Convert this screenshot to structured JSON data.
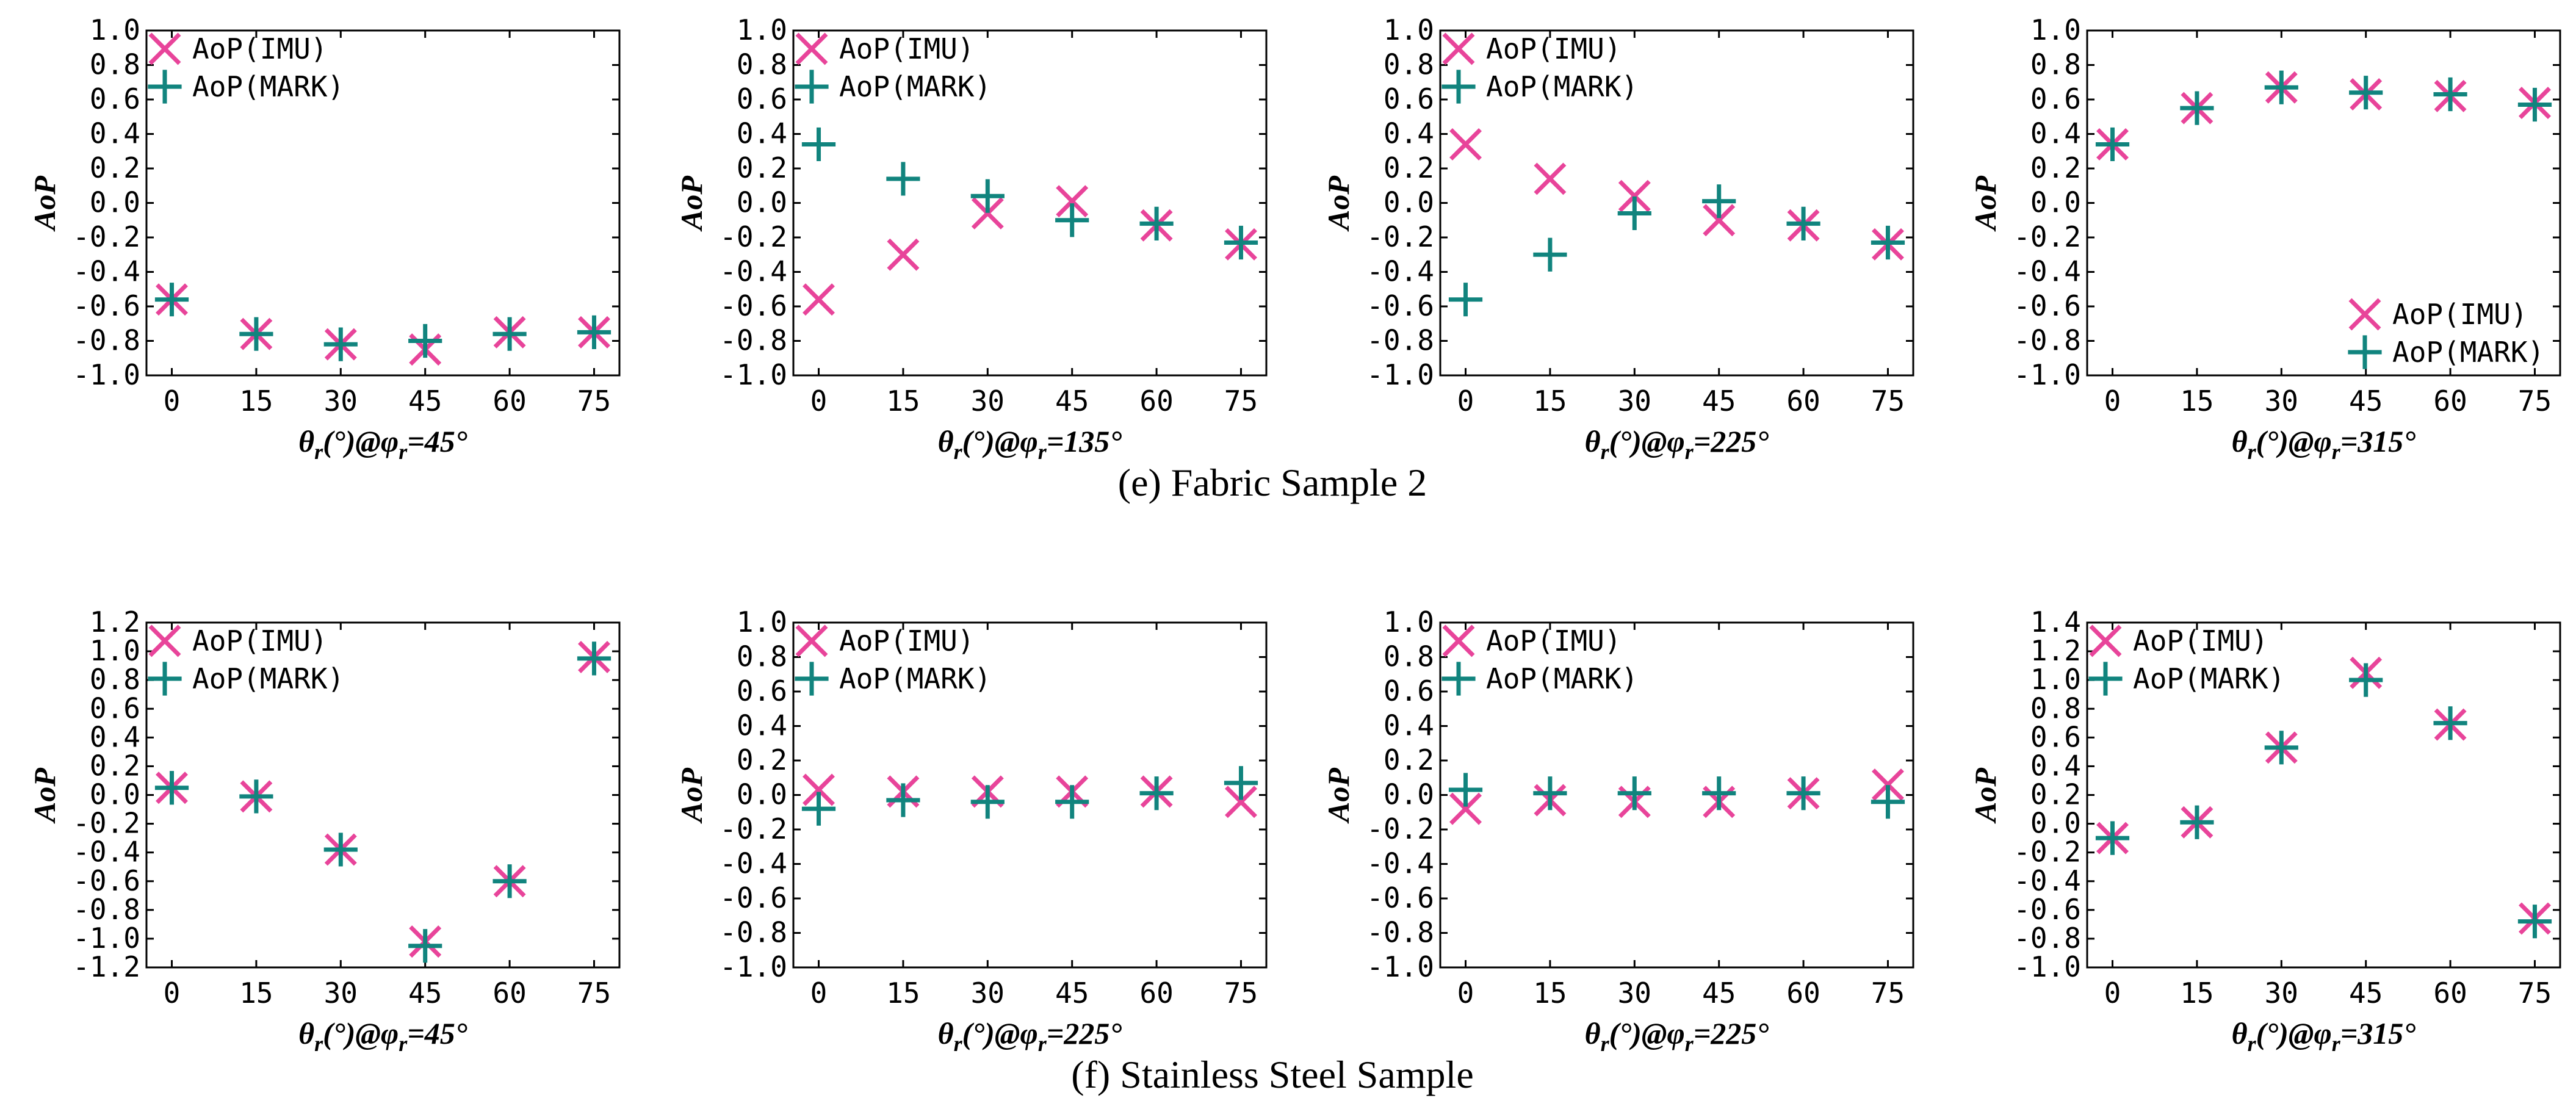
{
  "figure": {
    "captions": [
      "(e) Fabric Sample 2",
      "(f) Stainless Steel Sample"
    ]
  },
  "colors": {
    "imu": "#e8449a",
    "mark": "#11847e",
    "axis": "#000000"
  },
  "legend": {
    "imu_label": "AoP(IMU)",
    "mark_label": "AoP(MARK)"
  },
  "chart_data": [
    {
      "type": "scatter",
      "panel": "e-1",
      "title": "",
      "ylabel": "AoP",
      "xlabel": "θr(°)@φr=45°",
      "x": [
        0,
        15,
        30,
        45,
        60,
        75
      ],
      "xticks": [
        "0",
        "15",
        "30",
        "45",
        "60",
        "75"
      ],
      "ylim": [
        -1.0,
        1.0
      ],
      "yticks": [
        "1.0",
        "0.8",
        "0.6",
        "0.4",
        "0.2",
        "0.0",
        "-0.2",
        "-0.4",
        "-0.6",
        "-0.8",
        "-1.0"
      ],
      "legend_position": "top-left",
      "series": [
        {
          "name": "AoP(IMU)",
          "marker": "x",
          "values": [
            -0.56,
            -0.76,
            -0.82,
            -0.85,
            -0.75,
            -0.75
          ]
        },
        {
          "name": "AoP(MARK)",
          "marker": "+",
          "values": [
            -0.56,
            -0.76,
            -0.82,
            -0.8,
            -0.76,
            -0.75
          ]
        }
      ]
    },
    {
      "type": "scatter",
      "panel": "e-2",
      "title": "",
      "ylabel": "AoP",
      "xlabel": "θr(°)@φr=135°",
      "x": [
        0,
        15,
        30,
        45,
        60,
        75
      ],
      "xticks": [
        "0",
        "15",
        "30",
        "45",
        "60",
        "75"
      ],
      "ylim": [
        -1.0,
        1.0
      ],
      "yticks": [
        "1.0",
        "0.8",
        "0.6",
        "0.4",
        "0.2",
        "0.0",
        "-0.2",
        "-0.4",
        "-0.6",
        "-0.8",
        "-1.0"
      ],
      "legend_position": "top-left",
      "series": [
        {
          "name": "AoP(IMU)",
          "marker": "x",
          "values": [
            -0.56,
            -0.3,
            -0.06,
            0.01,
            -0.13,
            -0.24
          ]
        },
        {
          "name": "AoP(MARK)",
          "marker": "+",
          "values": [
            0.34,
            0.14,
            0.04,
            -0.1,
            -0.12,
            -0.23
          ]
        }
      ]
    },
    {
      "type": "scatter",
      "panel": "e-3",
      "title": "",
      "ylabel": "AoP",
      "xlabel": "θr(°)@φr=225°",
      "x": [
        0,
        15,
        30,
        45,
        60,
        75
      ],
      "xticks": [
        "0",
        "15",
        "30",
        "45",
        "60",
        "75"
      ],
      "ylim": [
        -1.0,
        1.0
      ],
      "yticks": [
        "1.0",
        "0.8",
        "0.6",
        "0.4",
        "0.2",
        "0.0",
        "-0.2",
        "-0.4",
        "-0.6",
        "-0.8",
        "-1.0"
      ],
      "legend_position": "top-left",
      "series": [
        {
          "name": "AoP(IMU)",
          "marker": "x",
          "values": [
            0.34,
            0.14,
            0.04,
            -0.1,
            -0.13,
            -0.24
          ]
        },
        {
          "name": "AoP(MARK)",
          "marker": "+",
          "values": [
            -0.56,
            -0.3,
            -0.06,
            0.01,
            -0.12,
            -0.23
          ]
        }
      ]
    },
    {
      "type": "scatter",
      "panel": "e-4",
      "title": "",
      "ylabel": "AoP",
      "xlabel": "θr(°)@φr=315°",
      "x": [
        0,
        15,
        30,
        45,
        60,
        75
      ],
      "xticks": [
        "0",
        "15",
        "30",
        "45",
        "60",
        "75"
      ],
      "ylim": [
        -1.0,
        1.0
      ],
      "yticks": [
        "1.0",
        "0.8",
        "0.6",
        "0.4",
        "0.2",
        "0.0",
        "-0.2",
        "-0.4",
        "-0.6",
        "-0.8",
        "-1.0"
      ],
      "legend_position": "bottom-right",
      "series": [
        {
          "name": "AoP(IMU)",
          "marker": "x",
          "values": [
            0.34,
            0.55,
            0.67,
            0.63,
            0.62,
            0.58
          ]
        },
        {
          "name": "AoP(MARK)",
          "marker": "+",
          "values": [
            0.34,
            0.55,
            0.67,
            0.64,
            0.63,
            0.57
          ]
        }
      ]
    },
    {
      "type": "scatter",
      "panel": "f-1",
      "title": "",
      "ylabel": "AoP",
      "xlabel": "θr(°)@φr=45°",
      "x": [
        0,
        15,
        30,
        45,
        60,
        75
      ],
      "xticks": [
        "0",
        "15",
        "30",
        "45",
        "60",
        "75"
      ],
      "ylim": [
        -1.2,
        1.2
      ],
      "yticks": [
        "1.2",
        "1.0",
        "0.8",
        "0.6",
        "0.4",
        "0.2",
        "0.0",
        "-0.2",
        "-0.4",
        "-0.6",
        "-0.8",
        "-1.0",
        "-1.2"
      ],
      "legend_position": "top-left",
      "series": [
        {
          "name": "AoP(IMU)",
          "marker": "x",
          "values": [
            0.05,
            -0.01,
            -0.38,
            -1.02,
            -0.6,
            0.96
          ]
        },
        {
          "name": "AoP(MARK)",
          "marker": "+",
          "values": [
            0.05,
            -0.01,
            -0.38,
            -1.05,
            -0.6,
            0.95
          ]
        }
      ]
    },
    {
      "type": "scatter",
      "panel": "f-2",
      "title": "",
      "ylabel": "AoP",
      "xlabel": "θr(°)@φr=225°",
      "x": [
        0,
        15,
        30,
        45,
        60,
        75
      ],
      "xticks": [
        "0",
        "15",
        "30",
        "45",
        "60",
        "75"
      ],
      "ylim": [
        -1.0,
        1.0
      ],
      "yticks": [
        "1.0",
        "0.8",
        "0.6",
        "0.4",
        "0.2",
        "0.0",
        "-0.2",
        "-0.4",
        "-0.6",
        "-0.8",
        "-1.0"
      ],
      "legend_position": "top-left",
      "series": [
        {
          "name": "AoP(IMU)",
          "marker": "x",
          "values": [
            0.03,
            0.02,
            0.02,
            0.02,
            0.02,
            -0.04
          ]
        },
        {
          "name": "AoP(MARK)",
          "marker": "+",
          "values": [
            -0.08,
            -0.03,
            -0.04,
            -0.04,
            0.01,
            0.07
          ]
        }
      ]
    },
    {
      "type": "scatter",
      "panel": "f-3",
      "title": "",
      "ylabel": "AoP",
      "xlabel": "θr(°)@φr=225°",
      "x": [
        0,
        15,
        30,
        45,
        60,
        75
      ],
      "xticks": [
        "0",
        "15",
        "30",
        "45",
        "60",
        "75"
      ],
      "ylim": [
        -1.0,
        1.0
      ],
      "yticks": [
        "1.0",
        "0.8",
        "0.6",
        "0.4",
        "0.2",
        "0.0",
        "-0.2",
        "-0.4",
        "-0.6",
        "-0.8",
        "-1.0"
      ],
      "legend_position": "top-left",
      "series": [
        {
          "name": "AoP(IMU)",
          "marker": "x",
          "values": [
            -0.08,
            -0.03,
            -0.04,
            -0.04,
            0.01,
            0.06
          ]
        },
        {
          "name": "AoP(MARK)",
          "marker": "+",
          "values": [
            0.03,
            0.01,
            0.01,
            0.01,
            0.01,
            -0.04
          ]
        }
      ]
    },
    {
      "type": "scatter",
      "panel": "f-4",
      "title": "",
      "ylabel": "AoP",
      "xlabel": "θr(°)@φr=315°",
      "x": [
        0,
        15,
        30,
        45,
        60,
        75
      ],
      "xticks": [
        "0",
        "15",
        "30",
        "45",
        "60",
        "75"
      ],
      "ylim": [
        -1.0,
        1.4
      ],
      "yticks": [
        "1.4",
        "1.2",
        "1.0",
        "0.8",
        "0.6",
        "0.4",
        "0.2",
        "0.0",
        "-0.2",
        "-0.4",
        "-0.6",
        "-0.8",
        "-1.0"
      ],
      "legend_position": "top-left",
      "series": [
        {
          "name": "AoP(IMU)",
          "marker": "x",
          "values": [
            -0.1,
            0.01,
            0.53,
            1.05,
            0.69,
            -0.66
          ]
        },
        {
          "name": "AoP(MARK)",
          "marker": "+",
          "values": [
            -0.1,
            0.01,
            0.53,
            1.0,
            0.7,
            -0.68
          ]
        }
      ]
    }
  ]
}
